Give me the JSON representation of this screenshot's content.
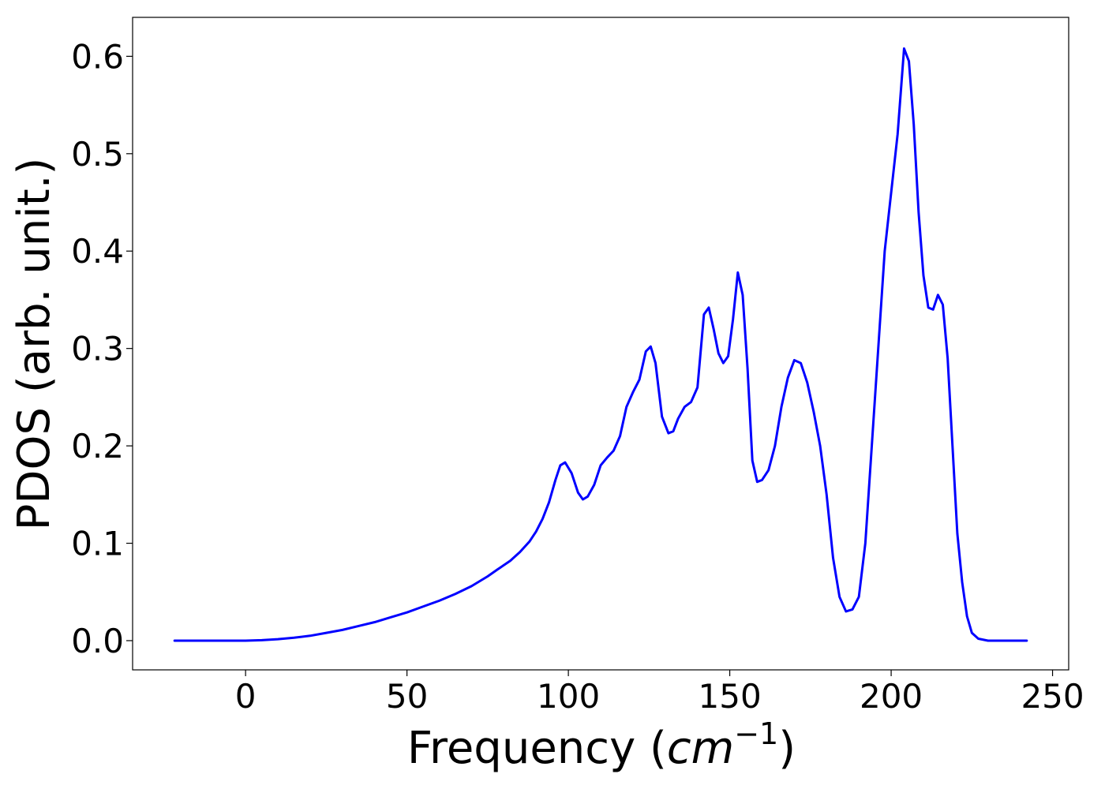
{
  "chart_data": {
    "type": "line",
    "title": "",
    "xlabel": "Frequency (",
    "xlabel_math": "cm",
    "xlabel_sup": "−1",
    "xlabel_close": ")",
    "ylabel": "PDOS (arb. unit.)",
    "xlim": [
      -35,
      255
    ],
    "ylim": [
      -0.03,
      0.64
    ],
    "xticks": [
      0,
      50,
      100,
      150,
      200,
      250
    ],
    "xtick_labels": [
      "0",
      "50",
      "100",
      "150",
      "200",
      "250"
    ],
    "yticks": [
      0.0,
      0.1,
      0.2,
      0.3,
      0.4,
      0.5,
      0.6
    ],
    "ytick_labels": [
      "0.0",
      "0.1",
      "0.2",
      "0.3",
      "0.4",
      "0.5",
      "0.6"
    ],
    "grid": false,
    "series": [
      {
        "color": "#0000ff",
        "x": [
          -22,
          -10,
          0,
          5,
          10,
          15,
          20,
          25,
          30,
          35,
          40,
          45,
          50,
          55,
          60,
          65,
          70,
          75,
          78,
          82,
          85,
          88,
          90,
          92,
          94,
          96,
          97.5,
          99,
          101,
          103,
          104.5,
          106,
          108,
          110,
          112,
          114,
          116,
          118,
          120,
          122,
          124,
          125.5,
          127,
          129,
          131,
          132.5,
          134,
          136,
          138,
          140,
          142,
          143.5,
          145,
          146.5,
          148,
          149.5,
          151,
          152.5,
          154,
          155.5,
          157,
          158.5,
          160,
          162,
          164,
          166,
          168,
          170,
          172,
          174,
          176,
          178,
          180,
          182,
          184,
          186,
          188,
          190,
          192,
          194,
          196,
          198,
          200,
          202,
          204,
          205.5,
          207,
          208.5,
          210,
          211.5,
          213,
          214.5,
          216,
          217.5,
          219,
          220.5,
          222,
          223.5,
          225,
          227,
          230,
          242
        ],
        "y": [
          0.0,
          0.0,
          0.0,
          0.0005,
          0.0015,
          0.003,
          0.005,
          0.008,
          0.011,
          0.015,
          0.019,
          0.024,
          0.029,
          0.035,
          0.041,
          0.048,
          0.056,
          0.066,
          0.073,
          0.082,
          0.091,
          0.102,
          0.112,
          0.125,
          0.142,
          0.165,
          0.18,
          0.183,
          0.172,
          0.152,
          0.145,
          0.148,
          0.16,
          0.18,
          0.188,
          0.195,
          0.21,
          0.24,
          0.255,
          0.268,
          0.297,
          0.302,
          0.285,
          0.23,
          0.213,
          0.215,
          0.228,
          0.24,
          0.245,
          0.26,
          0.335,
          0.342,
          0.32,
          0.295,
          0.285,
          0.292,
          0.33,
          0.378,
          0.355,
          0.28,
          0.185,
          0.163,
          0.165,
          0.175,
          0.2,
          0.24,
          0.27,
          0.288,
          0.285,
          0.265,
          0.235,
          0.2,
          0.15,
          0.085,
          0.045,
          0.03,
          0.032,
          0.045,
          0.1,
          0.2,
          0.3,
          0.4,
          0.46,
          0.52,
          0.608,
          0.595,
          0.53,
          0.44,
          0.375,
          0.342,
          0.34,
          0.355,
          0.345,
          0.29,
          0.2,
          0.11,
          0.06,
          0.025,
          0.008,
          0.002,
          0.0,
          0.0
        ]
      }
    ]
  }
}
